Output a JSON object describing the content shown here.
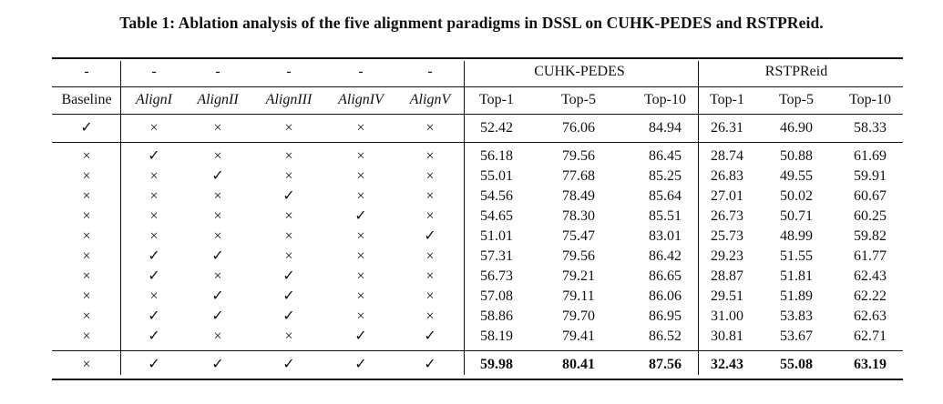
{
  "caption": "Table 1: Ablation analysis of the five alignment paradigms in DSSL on CUHK-PEDES and RSTPReid.",
  "group_headers": [
    "-",
    "-",
    "-",
    "-",
    "-",
    "-",
    "CUHK-PEDES",
    "RSTPReid"
  ],
  "columns": [
    "Baseline",
    "AlignI",
    "AlignII",
    "AlignIII",
    "AlignIV",
    "AlignV",
    "Top-1",
    "Top-5",
    "Top-10",
    "Top-1",
    "Top-5",
    "Top-10"
  ],
  "rows": [
    [
      "✓",
      "×",
      "×",
      "×",
      "×",
      "×",
      "52.42",
      "76.06",
      "84.94",
      "26.31",
      "46.90",
      "58.33"
    ],
    [
      "×",
      "✓",
      "×",
      "×",
      "×",
      "×",
      "56.18",
      "79.56",
      "86.45",
      "28.74",
      "50.88",
      "61.69"
    ],
    [
      "×",
      "×",
      "✓",
      "×",
      "×",
      "×",
      "55.01",
      "77.68",
      "85.25",
      "26.83",
      "49.55",
      "59.91"
    ],
    [
      "×",
      "×",
      "×",
      "✓",
      "×",
      "×",
      "54.56",
      "78.49",
      "85.64",
      "27.01",
      "50.02",
      "60.67"
    ],
    [
      "×",
      "×",
      "×",
      "×",
      "✓",
      "×",
      "54.65",
      "78.30",
      "85.51",
      "26.73",
      "50.71",
      "60.25"
    ],
    [
      "×",
      "×",
      "×",
      "×",
      "×",
      "✓",
      "51.01",
      "75.47",
      "83.01",
      "25.73",
      "48.99",
      "59.82"
    ],
    [
      "×",
      "✓",
      "✓",
      "×",
      "×",
      "×",
      "57.31",
      "79.56",
      "86.42",
      "29.23",
      "51.55",
      "61.77"
    ],
    [
      "×",
      "✓",
      "×",
      "✓",
      "×",
      "×",
      "56.73",
      "79.21",
      "86.65",
      "28.87",
      "51.81",
      "62.43"
    ],
    [
      "×",
      "×",
      "✓",
      "✓",
      "×",
      "×",
      "57.08",
      "79.11",
      "86.06",
      "29.51",
      "51.89",
      "62.22"
    ],
    [
      "×",
      "✓",
      "✓",
      "✓",
      "×",
      "×",
      "58.86",
      "79.70",
      "86.95",
      "31.00",
      "53.83",
      "62.63"
    ],
    [
      "×",
      "✓",
      "×",
      "×",
      "✓",
      "✓",
      "58.19",
      "79.41",
      "86.52",
      "30.81",
      "53.67",
      "62.71"
    ],
    [
      "×",
      "✓",
      "✓",
      "✓",
      "✓",
      "✓",
      "59.98",
      "80.41",
      "87.56",
      "32.43",
      "55.08",
      "63.19"
    ]
  ]
}
